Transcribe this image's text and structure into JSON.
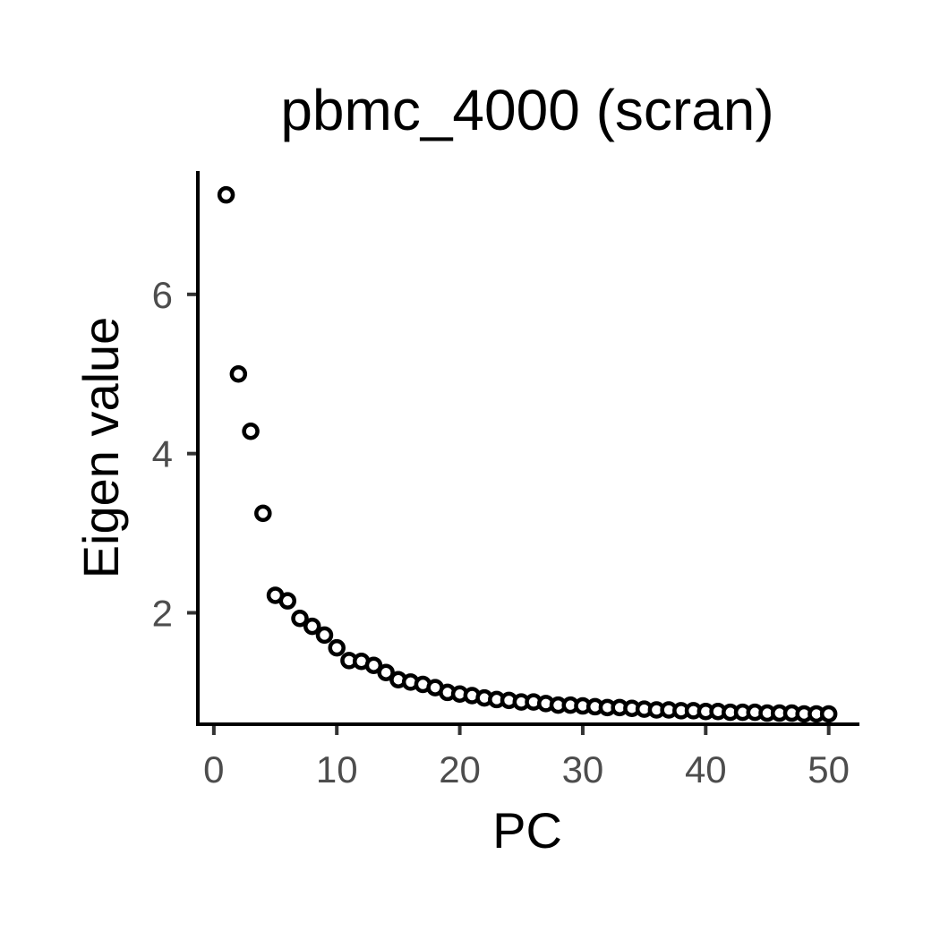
{
  "chart_data": {
    "type": "scatter",
    "title": "pbmc_4000 (scran)",
    "xlabel": "PC",
    "ylabel": "Eigen value",
    "xlim": [
      -1.3,
      52.5
    ],
    "ylim": [
      0.6,
      7.55
    ],
    "xticks": [
      0,
      10,
      20,
      30,
      40,
      50
    ],
    "yticks": [
      2,
      4,
      6
    ],
    "grid": false,
    "legend": "none",
    "marker": "open-circle",
    "colors": {
      "point_stroke": "#000000",
      "point_fill": "#ffffff",
      "axis": "#000000",
      "tick_label": "#4d4d4d"
    },
    "series": [
      {
        "x": [
          1,
          2,
          3,
          4,
          5,
          6,
          7,
          8,
          9,
          10,
          11,
          12,
          13,
          14,
          15,
          16,
          17,
          18,
          19,
          20,
          21,
          22,
          23,
          24,
          25,
          26,
          27,
          28,
          29,
          30,
          31,
          32,
          33,
          34,
          35,
          36,
          37,
          38,
          39,
          40,
          41,
          42,
          43,
          44,
          45,
          46,
          47,
          48,
          49,
          50
        ],
        "y": [
          7.25,
          5.0,
          4.28,
          3.25,
          2.22,
          2.15,
          1.93,
          1.83,
          1.72,
          1.56,
          1.4,
          1.39,
          1.34,
          1.25,
          1.16,
          1.13,
          1.1,
          1.06,
          1.0,
          0.98,
          0.96,
          0.93,
          0.91,
          0.9,
          0.88,
          0.88,
          0.86,
          0.84,
          0.84,
          0.83,
          0.82,
          0.81,
          0.81,
          0.8,
          0.79,
          0.78,
          0.78,
          0.77,
          0.77,
          0.76,
          0.76,
          0.75,
          0.75,
          0.75,
          0.74,
          0.74,
          0.74,
          0.73,
          0.73,
          0.73
        ]
      }
    ]
  }
}
